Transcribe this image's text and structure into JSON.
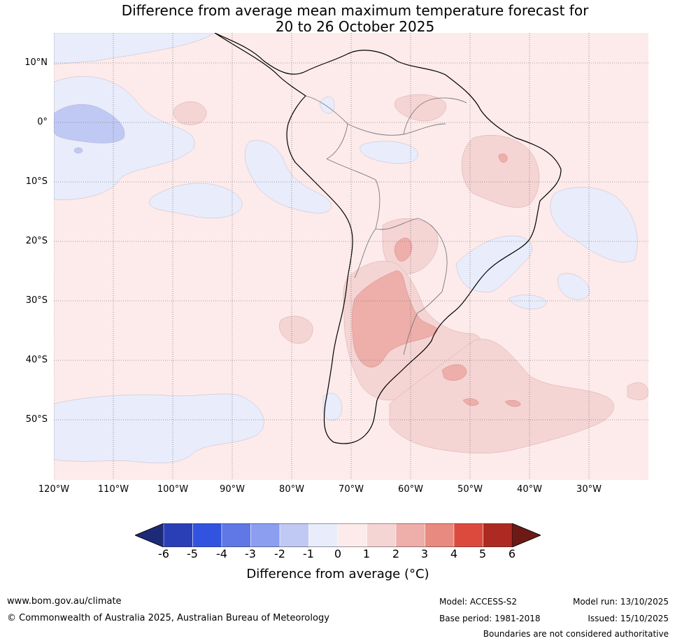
{
  "title": {
    "line1": "Difference from average mean maximum temperature forecast for",
    "line2": "20 to 26 October 2025"
  },
  "axes": {
    "lat_labels": [
      "10°N",
      "0°",
      "10°S",
      "20°S",
      "30°S",
      "40°S",
      "50°S"
    ],
    "lon_labels": [
      "120°W",
      "110°W",
      "100°W",
      "90°W",
      "80°W",
      "70°W",
      "60°W",
      "50°W",
      "40°W",
      "30°W"
    ]
  },
  "colorbar": {
    "label": "Difference from average (°C)",
    "ticks": [
      "-6",
      "-5",
      "-4",
      "-3",
      "-2",
      "-1",
      "0",
      "1",
      "2",
      "3",
      "4",
      "5",
      "6"
    ],
    "colors": [
      "#1c2a78",
      "#2a3fb5",
      "#3153e0",
      "#5f78e6",
      "#8b9ef0",
      "#c0c9f3",
      "#e8ecfb",
      "#fcebea",
      "#f5d4d4",
      "#eeaeaa",
      "#e88a80",
      "#dc4a3e",
      "#ac2a22",
      "#6e1a14"
    ]
  },
  "footer": {
    "website": "www.bom.gov.au/climate",
    "copyright": "© Commonwealth of Australia 2025, Australian Bureau of Meteorology",
    "model": "Model: ACCESS-S2",
    "base_period": "Base period: 1981-2018",
    "model_run": "Model run: 13/10/2025",
    "issued": "Issued: 15/10/2025",
    "disclaimer": "Boundaries are not considered authoritative"
  }
}
